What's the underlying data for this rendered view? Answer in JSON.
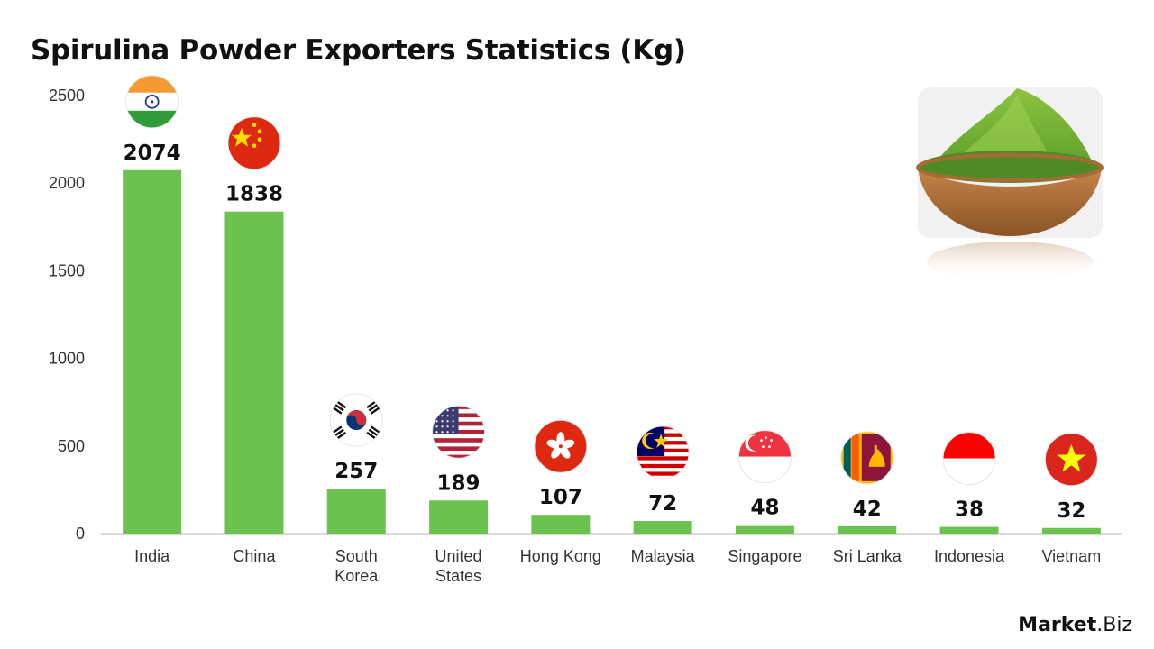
{
  "title": "Spirulina Powder Exporters Statistics (Kg)",
  "brand": {
    "bold": "Market",
    "rest": ".Biz"
  },
  "colors": {
    "bar": "#6cc24f",
    "axis": "#cfcfcf"
  },
  "chart_data": {
    "type": "bar",
    "title": "Spirulina Powder Exporters Statistics (Kg)",
    "categories": [
      [
        "India"
      ],
      [
        "China"
      ],
      [
        "South",
        "Korea"
      ],
      [
        "United",
        "States"
      ],
      [
        "Hong Kong"
      ],
      [
        "Malaysia"
      ],
      [
        "Singapore"
      ],
      [
        "Sri Lanka"
      ],
      [
        "Indonesia"
      ],
      [
        "Vietnam"
      ]
    ],
    "values": [
      2074,
      1838,
      257,
      189,
      107,
      72,
      48,
      42,
      38,
      32
    ],
    "flags": [
      "india",
      "china",
      "south-korea",
      "united-states",
      "hong-kong",
      "malaysia",
      "singapore",
      "sri-lanka",
      "indonesia",
      "vietnam"
    ],
    "yticks": [
      0,
      500,
      1000,
      1500,
      2000,
      2500
    ],
    "ylim": [
      0,
      2500
    ],
    "grid": false,
    "legend": "none"
  }
}
